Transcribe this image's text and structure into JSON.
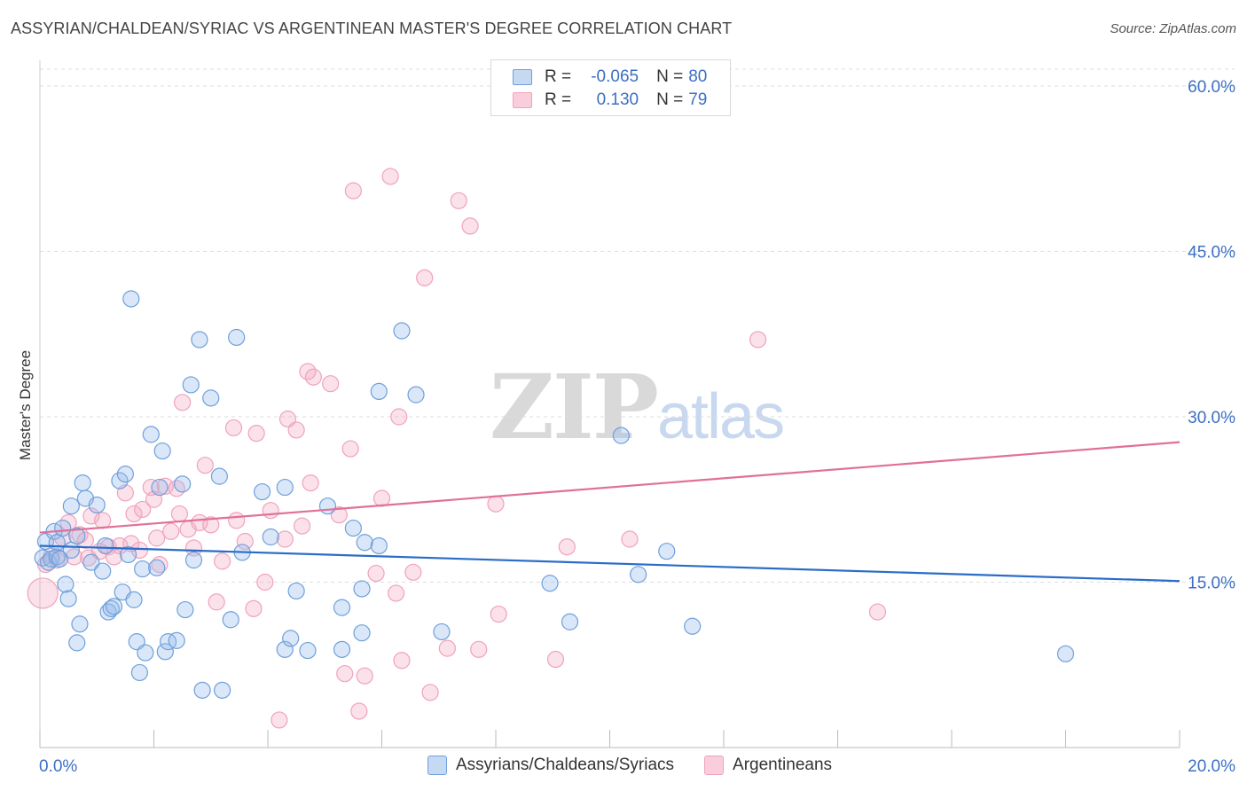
{
  "header": {
    "title": "ASSYRIAN/CHALDEAN/SYRIAC VS ARGENTINEAN MASTER'S DEGREE CORRELATION CHART",
    "source": "Source: ZipAtlas.com"
  },
  "watermark": {
    "zip": "ZIP",
    "atlas": "atlas"
  },
  "legend_top": [
    {
      "r_label": "R = ",
      "r_value": "-0.065",
      "n_label": "N = ",
      "n_value": "80"
    },
    {
      "r_label": "R = ",
      "r_value": "0.130",
      "n_label": "N = ",
      "n_value": "79"
    }
  ],
  "chart_data": {
    "type": "scatter",
    "title": "ASSYRIAN/CHALDEAN/SYRIAC VS ARGENTINEAN MASTER'S DEGREE CORRELATION CHART",
    "ylabel": "Master's Degree",
    "xlabel": "",
    "xlim": [
      0,
      20
    ],
    "ylim": [
      0,
      60
    ],
    "x_tick_labels": [
      "0.0%",
      "20.0%"
    ],
    "y_ticks": [
      15,
      30,
      45,
      60
    ],
    "y_tick_labels": [
      "15.0%",
      "30.0%",
      "45.0%",
      "60.0%"
    ],
    "grid": true,
    "legend_position": "top-center",
    "colors": {
      "blue": "#6fa0dc",
      "blue_line": "#2a6cc8",
      "pink": "#f0a3bb",
      "pink_line": "#e0709a"
    },
    "series": [
      {
        "name": "Assyrians/Chaldeans/Syriacs",
        "color": "blue",
        "trend": [
          [
            0,
            18.3
          ],
          [
            20,
            15.1
          ]
        ],
        "points": [
          [
            0.05,
            17.2
          ],
          [
            0.1,
            18.7
          ],
          [
            0.15,
            16.8
          ],
          [
            0.2,
            17.1
          ],
          [
            0.25,
            19.6
          ],
          [
            0.3,
            17.3
          ],
          [
            0.4,
            19.9
          ],
          [
            0.45,
            14.8
          ],
          [
            0.5,
            13.5
          ],
          [
            0.55,
            17.9
          ],
          [
            0.55,
            21.9
          ],
          [
            0.65,
            19.2
          ],
          [
            0.65,
            9.5
          ],
          [
            0.7,
            11.2
          ],
          [
            0.75,
            24.0
          ],
          [
            0.8,
            22.6
          ],
          [
            0.9,
            16.8
          ],
          [
            1.0,
            22.0
          ],
          [
            1.1,
            16.0
          ],
          [
            1.15,
            18.3
          ],
          [
            1.2,
            12.3
          ],
          [
            1.25,
            12.6
          ],
          [
            1.3,
            12.8
          ],
          [
            1.4,
            24.2
          ],
          [
            1.45,
            14.1
          ],
          [
            1.5,
            24.8
          ],
          [
            1.55,
            17.5
          ],
          [
            1.6,
            40.7
          ],
          [
            1.65,
            13.4
          ],
          [
            1.7,
            9.6
          ],
          [
            1.75,
            6.8
          ],
          [
            1.8,
            16.2
          ],
          [
            1.85,
            8.6
          ],
          [
            1.95,
            28.4
          ],
          [
            2.05,
            16.3
          ],
          [
            2.1,
            23.6
          ],
          [
            2.15,
            26.9
          ],
          [
            2.2,
            8.7
          ],
          [
            2.25,
            9.6
          ],
          [
            2.4,
            9.7
          ],
          [
            2.5,
            23.9
          ],
          [
            2.55,
            12.5
          ],
          [
            2.65,
            32.9
          ],
          [
            2.7,
            17.0
          ],
          [
            2.8,
            37.0
          ],
          [
            2.85,
            5.2
          ],
          [
            3.0,
            31.7
          ],
          [
            3.15,
            24.6
          ],
          [
            3.2,
            5.2
          ],
          [
            3.35,
            11.6
          ],
          [
            3.45,
            37.2
          ],
          [
            3.55,
            17.7
          ],
          [
            3.9,
            23.2
          ],
          [
            4.05,
            19.1
          ],
          [
            4.3,
            23.6
          ],
          [
            4.3,
            8.9
          ],
          [
            4.4,
            9.9
          ],
          [
            4.5,
            14.2
          ],
          [
            4.7,
            8.8
          ],
          [
            5.05,
            21.9
          ],
          [
            5.3,
            12.7
          ],
          [
            5.3,
            8.9
          ],
          [
            5.5,
            19.9
          ],
          [
            5.65,
            10.4
          ],
          [
            5.65,
            14.4
          ],
          [
            5.7,
            18.6
          ],
          [
            5.95,
            18.3
          ],
          [
            5.95,
            32.3
          ],
          [
            6.35,
            37.8
          ],
          [
            6.6,
            32.0
          ],
          [
            7.05,
            10.5
          ],
          [
            8.95,
            14.9
          ],
          [
            9.3,
            11.4
          ],
          [
            10.2,
            28.3
          ],
          [
            10.5,
            15.7
          ],
          [
            11.0,
            17.8
          ],
          [
            11.45,
            11.0
          ],
          [
            18.0,
            8.5
          ],
          [
            0.35,
            17.1
          ],
          [
            0.3,
            18.6
          ]
        ]
      },
      {
        "name": "Argentineans",
        "color": "pink",
        "trend": [
          [
            0,
            19.5
          ],
          [
            20,
            27.7
          ]
        ],
        "points": [
          [
            0.05,
            14.0
          ],
          [
            0.1,
            16.6
          ],
          [
            0.2,
            17.4
          ],
          [
            0.3,
            17.0
          ],
          [
            0.4,
            19.0
          ],
          [
            0.5,
            20.4
          ],
          [
            0.6,
            17.3
          ],
          [
            0.7,
            19.3
          ],
          [
            0.8,
            18.8
          ],
          [
            0.85,
            17.2
          ],
          [
            0.9,
            21.0
          ],
          [
            1.05,
            17.8
          ],
          [
            1.1,
            20.6
          ],
          [
            1.2,
            18.2
          ],
          [
            1.3,
            17.3
          ],
          [
            1.4,
            18.3
          ],
          [
            1.5,
            23.1
          ],
          [
            1.6,
            18.5
          ],
          [
            1.65,
            21.2
          ],
          [
            1.75,
            17.9
          ],
          [
            1.8,
            21.6
          ],
          [
            1.95,
            23.6
          ],
          [
            2.0,
            22.5
          ],
          [
            2.05,
            19.0
          ],
          [
            2.1,
            16.6
          ],
          [
            2.2,
            23.7
          ],
          [
            2.3,
            19.6
          ],
          [
            2.4,
            23.5
          ],
          [
            2.45,
            21.2
          ],
          [
            2.5,
            31.3
          ],
          [
            2.6,
            19.8
          ],
          [
            2.7,
            18.1
          ],
          [
            2.8,
            20.4
          ],
          [
            2.9,
            25.6
          ],
          [
            3.0,
            20.2
          ],
          [
            3.1,
            13.2
          ],
          [
            3.2,
            16.9
          ],
          [
            3.4,
            29.0
          ],
          [
            3.45,
            20.6
          ],
          [
            3.6,
            18.7
          ],
          [
            3.75,
            12.6
          ],
          [
            3.8,
            28.5
          ],
          [
            3.95,
            15.0
          ],
          [
            4.05,
            21.5
          ],
          [
            4.2,
            2.5
          ],
          [
            4.3,
            18.9
          ],
          [
            4.35,
            29.8
          ],
          [
            4.5,
            28.8
          ],
          [
            4.6,
            20.1
          ],
          [
            4.7,
            34.1
          ],
          [
            4.75,
            24.0
          ],
          [
            4.8,
            33.6
          ],
          [
            5.1,
            33.0
          ],
          [
            5.25,
            21.1
          ],
          [
            5.35,
            6.7
          ],
          [
            5.45,
            27.1
          ],
          [
            5.5,
            50.5
          ],
          [
            5.6,
            3.3
          ],
          [
            5.7,
            6.5
          ],
          [
            5.9,
            15.8
          ],
          [
            6.0,
            22.6
          ],
          [
            6.15,
            51.8
          ],
          [
            6.25,
            14.0
          ],
          [
            6.3,
            30.0
          ],
          [
            6.35,
            7.9
          ],
          [
            6.55,
            15.9
          ],
          [
            6.75,
            42.6
          ],
          [
            6.85,
            5.0
          ],
          [
            7.15,
            9.0
          ],
          [
            7.35,
            49.6
          ],
          [
            7.55,
            47.3
          ],
          [
            7.7,
            8.9
          ],
          [
            8.0,
            22.1
          ],
          [
            8.05,
            12.1
          ],
          [
            9.05,
            8.0
          ],
          [
            9.25,
            18.2
          ],
          [
            10.35,
            18.9
          ],
          [
            12.6,
            37.0
          ],
          [
            14.7,
            12.3
          ]
        ]
      }
    ]
  }
}
